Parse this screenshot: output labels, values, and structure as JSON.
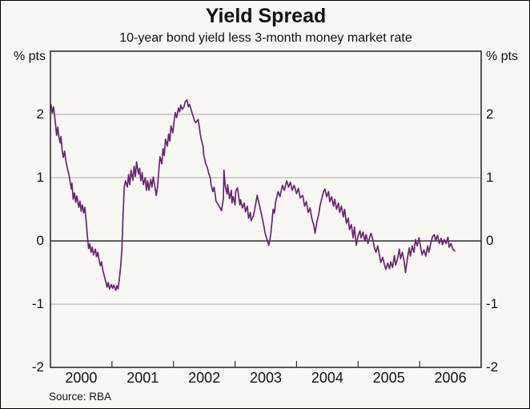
{
  "header": {
    "title": "Yield Spread",
    "subtitle": "10-year bond yield less 3-month money market rate"
  },
  "axes": {
    "left_unit": "% pts",
    "right_unit": "% pts",
    "y_ticks": [
      {
        "value": 2,
        "label": "2"
      },
      {
        "value": 1,
        "label": "1"
      },
      {
        "value": 0,
        "label": "0"
      },
      {
        "value": -1,
        "label": "-1"
      },
      {
        "value": -2,
        "label": "-2"
      }
    ],
    "x_year_ticks": [
      2001,
      2002,
      2003,
      2004,
      2005,
      2006
    ],
    "x_labels": [
      {
        "year": 2000,
        "label": "2000"
      },
      {
        "year": 2001,
        "label": "2001"
      },
      {
        "year": 2002,
        "label": "2002"
      },
      {
        "year": 2003,
        "label": "2003"
      },
      {
        "year": 2004,
        "label": "2004"
      },
      {
        "year": 2005,
        "label": "2005"
      },
      {
        "year": 2006,
        "label": "2006"
      }
    ]
  },
  "footer": {
    "source": "Source: RBA"
  },
  "colors": {
    "line": "#6a2472",
    "grid": "#a9a9a9",
    "axis": "#2e2e2e",
    "background": "#f8f7f4"
  },
  "chart_data": {
    "type": "line",
    "title": "Yield Spread",
    "subtitle": "10-year bond yield less 3-month money market rate",
    "ylabel": "% pts",
    "xlim": [
      2000,
      2007
    ],
    "ylim": [
      -2,
      3
    ],
    "grid_values": [
      2,
      1,
      -1
    ],
    "zero_line": 0,
    "legend": "none",
    "series": [
      {
        "name": "Yield spread: 10-year bond yield less 3-month money market rate",
        "units": "% pts",
        "points": [
          [
            2000.01,
            2.15
          ],
          [
            2000.03,
            2.02
          ],
          [
            2000.05,
            2.12
          ],
          [
            2000.07,
            1.96
          ],
          [
            2000.08,
            1.88
          ],
          [
            2000.1,
            1.67
          ],
          [
            2000.12,
            1.8
          ],
          [
            2000.14,
            1.62
          ],
          [
            2000.16,
            1.55
          ],
          [
            2000.17,
            1.65
          ],
          [
            2000.19,
            1.44
          ],
          [
            2000.21,
            1.32
          ],
          [
            2000.23,
            1.42
          ],
          [
            2000.25,
            1.27
          ],
          [
            2000.28,
            1.13
          ],
          [
            2000.3,
            1.05
          ],
          [
            2000.32,
            0.94
          ],
          [
            2000.34,
            0.82
          ],
          [
            2000.35,
            0.91
          ],
          [
            2000.37,
            0.66
          ],
          [
            2000.39,
            0.76
          ],
          [
            2000.41,
            0.61
          ],
          [
            2000.43,
            0.71
          ],
          [
            2000.46,
            0.53
          ],
          [
            2000.48,
            0.63
          ],
          [
            2000.5,
            0.47
          ],
          [
            2000.52,
            0.57
          ],
          [
            2000.54,
            0.44
          ],
          [
            2000.56,
            0.53
          ],
          [
            2000.58,
            0.32
          ],
          [
            2000.6,
            0.08
          ],
          [
            2000.62,
            -0.12
          ],
          [
            2000.64,
            -0.05
          ],
          [
            2000.66,
            -0.18
          ],
          [
            2000.68,
            -0.1
          ],
          [
            2000.7,
            -0.22
          ],
          [
            2000.73,
            -0.13
          ],
          [
            2000.75,
            -0.25
          ],
          [
            2000.77,
            -0.18
          ],
          [
            2000.79,
            -0.3
          ],
          [
            2000.81,
            -0.39
          ],
          [
            2000.83,
            -0.33
          ],
          [
            2000.85,
            -0.46
          ],
          [
            2000.88,
            -0.57
          ],
          [
            2000.9,
            -0.65
          ],
          [
            2000.92,
            -0.73
          ],
          [
            2000.94,
            -0.66
          ],
          [
            2000.96,
            -0.76
          ],
          [
            2000.99,
            -0.69
          ],
          [
            2001.01,
            -0.75
          ],
          [
            2001.03,
            -0.7
          ],
          [
            2001.06,
            -0.78
          ],
          [
            2001.08,
            -0.71
          ],
          [
            2001.1,
            -0.76
          ],
          [
            2001.12,
            -0.6
          ],
          [
            2001.14,
            -0.42
          ],
          [
            2001.16,
            -0.15
          ],
          [
            2001.18,
            0.4
          ],
          [
            2001.2,
            0.85
          ],
          [
            2001.22,
            0.95
          ],
          [
            2001.25,
            0.85
          ],
          [
            2001.27,
            1.05
          ],
          [
            2001.29,
            0.89
          ],
          [
            2001.31,
            1.12
          ],
          [
            2001.34,
            0.96
          ],
          [
            2001.36,
            1.18
          ],
          [
            2001.38,
            1.02
          ],
          [
            2001.4,
            1.25
          ],
          [
            2001.43,
            1.06
          ],
          [
            2001.45,
            1.15
          ],
          [
            2001.47,
            0.95
          ],
          [
            2001.49,
            1.08
          ],
          [
            2001.51,
            0.89
          ],
          [
            2001.54,
            1.0
          ],
          [
            2001.56,
            0.8
          ],
          [
            2001.58,
            0.95
          ],
          [
            2001.6,
            0.8
          ],
          [
            2001.63,
            0.97
          ],
          [
            2001.65,
            0.85
          ],
          [
            2001.67,
            1.01
          ],
          [
            2001.69,
            0.9
          ],
          [
            2001.72,
            0.72
          ],
          [
            2001.74,
            0.85
          ],
          [
            2001.76,
            1.1
          ],
          [
            2001.78,
            1.33
          ],
          [
            2001.81,
            1.22
          ],
          [
            2001.83,
            1.46
          ],
          [
            2001.85,
            1.35
          ],
          [
            2001.87,
            1.61
          ],
          [
            2001.9,
            1.5
          ],
          [
            2001.92,
            1.69
          ],
          [
            2001.94,
            1.58
          ],
          [
            2001.96,
            1.82
          ],
          [
            2001.99,
            1.71
          ],
          [
            2002.01,
            1.9
          ],
          [
            2002.03,
            2.03
          ],
          [
            2002.05,
            1.95
          ],
          [
            2002.08,
            2.1
          ],
          [
            2002.1,
            2.04
          ],
          [
            2002.12,
            2.15
          ],
          [
            2002.14,
            2.08
          ],
          [
            2002.17,
            2.12
          ],
          [
            2002.19,
            2.2
          ],
          [
            2002.22,
            2.23
          ],
          [
            2002.24,
            2.12
          ],
          [
            2002.26,
            2.16
          ],
          [
            2002.3,
            2.03
          ],
          [
            2002.34,
            1.91
          ],
          [
            2002.36,
            1.87
          ],
          [
            2002.4,
            1.92
          ],
          [
            2002.42,
            1.8
          ],
          [
            2002.43,
            1.72
          ],
          [
            2002.45,
            1.61
          ],
          [
            2002.48,
            1.5
          ],
          [
            2002.49,
            1.37
          ],
          [
            2002.52,
            1.23
          ],
          [
            2002.55,
            1.16
          ],
          [
            2002.57,
            1.08
          ],
          [
            2002.6,
            0.99
          ],
          [
            2002.61,
            0.89
          ],
          [
            2002.64,
            0.78
          ],
          [
            2002.66,
            0.85
          ],
          [
            2002.68,
            0.72
          ],
          [
            2002.69,
            0.63
          ],
          [
            2002.73,
            0.57
          ],
          [
            2002.75,
            0.53
          ],
          [
            2002.78,
            0.48
          ],
          [
            2002.81,
            0.67
          ],
          [
            2002.82,
            1.12
          ],
          [
            2002.84,
            0.87
          ],
          [
            2002.87,
            0.74
          ],
          [
            2002.88,
            0.89
          ],
          [
            2002.91,
            0.67
          ],
          [
            2002.94,
            0.8
          ],
          [
            2002.95,
            0.6
          ],
          [
            2002.97,
            0.7
          ],
          [
            2003.0,
            0.57
          ],
          [
            2003.01,
            0.78
          ],
          [
            2003.04,
            0.84
          ],
          [
            2003.08,
            0.57
          ],
          [
            2003.09,
            0.65
          ],
          [
            2003.12,
            0.52
          ],
          [
            2003.15,
            0.6
          ],
          [
            2003.17,
            0.46
          ],
          [
            2003.2,
            0.55
          ],
          [
            2003.22,
            0.36
          ],
          [
            2003.25,
            0.45
          ],
          [
            2003.26,
            0.32
          ],
          [
            2003.3,
            0.4
          ],
          [
            2003.33,
            0.55
          ],
          [
            2003.36,
            0.72
          ],
          [
            2003.4,
            0.55
          ],
          [
            2003.43,
            0.42
          ],
          [
            2003.46,
            0.28
          ],
          [
            2003.49,
            0.12
          ],
          [
            2003.52,
            0.02
          ],
          [
            2003.55,
            -0.07
          ],
          [
            2003.58,
            0.1
          ],
          [
            2003.6,
            0.3
          ],
          [
            2003.62,
            0.5
          ],
          [
            2003.64,
            0.44
          ],
          [
            2003.66,
            0.62
          ],
          [
            2003.7,
            0.78
          ],
          [
            2003.73,
            0.7
          ],
          [
            2003.77,
            0.88
          ],
          [
            2003.8,
            0.8
          ],
          [
            2003.84,
            0.95
          ],
          [
            2003.87,
            0.85
          ],
          [
            2003.9,
            0.93
          ],
          [
            2003.93,
            0.8
          ],
          [
            2003.96,
            0.88
          ],
          [
            2004.0,
            0.75
          ],
          [
            2004.03,
            0.83
          ],
          [
            2004.06,
            0.68
          ],
          [
            2004.1,
            0.72
          ],
          [
            2004.13,
            0.55
          ],
          [
            2004.16,
            0.62
          ],
          [
            2004.19,
            0.45
          ],
          [
            2004.22,
            0.52
          ],
          [
            2004.25,
            0.35
          ],
          [
            2004.28,
            0.25
          ],
          [
            2004.3,
            0.12
          ],
          [
            2004.33,
            0.3
          ],
          [
            2004.36,
            0.42
          ],
          [
            2004.38,
            0.55
          ],
          [
            2004.41,
            0.67
          ],
          [
            2004.44,
            0.78
          ],
          [
            2004.46,
            0.82
          ],
          [
            2004.49,
            0.7
          ],
          [
            2004.52,
            0.78
          ],
          [
            2004.54,
            0.62
          ],
          [
            2004.57,
            0.7
          ],
          [
            2004.6,
            0.55
          ],
          [
            2004.62,
            0.66
          ],
          [
            2004.65,
            0.5
          ],
          [
            2004.68,
            0.6
          ],
          [
            2004.7,
            0.45
          ],
          [
            2004.73,
            0.55
          ],
          [
            2004.76,
            0.38
          ],
          [
            2004.78,
            0.5
          ],
          [
            2004.81,
            0.28
          ],
          [
            2004.84,
            0.36
          ],
          [
            2004.86,
            0.18
          ],
          [
            2004.89,
            0.26
          ],
          [
            2004.92,
            0.05
          ],
          [
            2004.94,
            0.22
          ],
          [
            2004.97,
            -0.07
          ],
          [
            2005.0,
            0.08
          ],
          [
            2005.03,
            0.16
          ],
          [
            2005.05,
            0.05
          ],
          [
            2005.08,
            0.14
          ],
          [
            2005.11,
            0.0
          ],
          [
            2005.13,
            0.1
          ],
          [
            2005.16,
            -0.04
          ],
          [
            2005.19,
            0.06
          ],
          [
            2005.21,
            0.12
          ],
          [
            2005.24,
            0.02
          ],
          [
            2005.27,
            -0.12
          ],
          [
            2005.29,
            -0.18
          ],
          [
            2005.32,
            -0.08
          ],
          [
            2005.35,
            -0.25
          ],
          [
            2005.37,
            -0.34
          ],
          [
            2005.4,
            -0.26
          ],
          [
            2005.43,
            -0.38
          ],
          [
            2005.45,
            -0.45
          ],
          [
            2005.48,
            -0.35
          ],
          [
            2005.51,
            -0.44
          ],
          [
            2005.53,
            -0.33
          ],
          [
            2005.56,
            -0.42
          ],
          [
            2005.59,
            -0.23
          ],
          [
            2005.61,
            -0.38
          ],
          [
            2005.64,
            -0.28
          ],
          [
            2005.67,
            -0.13
          ],
          [
            2005.69,
            -0.28
          ],
          [
            2005.72,
            -0.18
          ],
          [
            2005.75,
            -0.33
          ],
          [
            2005.77,
            -0.5
          ],
          [
            2005.8,
            -0.28
          ],
          [
            2005.83,
            -0.11
          ],
          [
            2005.85,
            -0.24
          ],
          [
            2005.88,
            -0.08
          ],
          [
            2005.91,
            -0.18
          ],
          [
            2005.93,
            0.02
          ],
          [
            2005.96,
            -0.08
          ],
          [
            2005.99,
            0.05
          ],
          [
            2006.02,
            -0.12
          ],
          [
            2006.04,
            -0.22
          ],
          [
            2006.07,
            -0.14
          ],
          [
            2006.1,
            -0.24
          ],
          [
            2006.13,
            -0.08
          ],
          [
            2006.15,
            -0.18
          ],
          [
            2006.18,
            -0.04
          ],
          [
            2006.21,
            0.07
          ],
          [
            2006.24,
            0.1
          ],
          [
            2006.26,
            0.0
          ],
          [
            2006.29,
            0.09
          ],
          [
            2006.32,
            -0.04
          ],
          [
            2006.35,
            0.04
          ],
          [
            2006.37,
            -0.06
          ],
          [
            2006.4,
            0.02
          ],
          [
            2006.43,
            -0.04
          ],
          [
            2006.46,
            0.06
          ],
          [
            2006.48,
            -0.1
          ],
          [
            2006.51,
            -0.04
          ],
          [
            2006.54,
            -0.13
          ],
          [
            2006.57,
            -0.16
          ]
        ]
      }
    ]
  }
}
